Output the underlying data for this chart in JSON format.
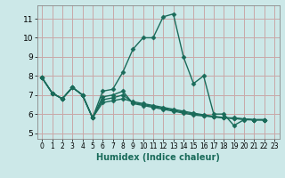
{
  "xlabel": "Humidex (Indice chaleur)",
  "bg_color": "#cce8e8",
  "grid_color": "#c8a8a8",
  "line_color": "#1a6b5a",
  "xlim": [
    -0.5,
    23.5
  ],
  "ylim": [
    4.7,
    11.7
  ],
  "xticks": [
    0,
    1,
    2,
    3,
    4,
    5,
    6,
    7,
    8,
    9,
    10,
    11,
    12,
    13,
    14,
    15,
    16,
    17,
    18,
    19,
    20,
    21,
    22,
    23
  ],
  "yticks": [
    5,
    6,
    7,
    8,
    9,
    10,
    11
  ],
  "series": [
    {
      "x": [
        0,
        1,
        2,
        3,
        4,
        5,
        6,
        7,
        8,
        9,
        10,
        11,
        12,
        13,
        14,
        15,
        16,
        17,
        18,
        19,
        20,
        21,
        22
      ],
      "y": [
        7.9,
        7.1,
        6.8,
        7.4,
        7.0,
        5.8,
        7.2,
        7.3,
        8.2,
        9.4,
        10.0,
        10.0,
        11.1,
        11.25,
        9.0,
        7.6,
        8.0,
        6.0,
        6.0,
        5.4,
        5.7,
        5.7,
        5.7
      ]
    },
    {
      "x": [
        0,
        1,
        2,
        3,
        4,
        5,
        6,
        7,
        8,
        9,
        10,
        11,
        12,
        13,
        14,
        15,
        16,
        17,
        18,
        19,
        20,
        21,
        22
      ],
      "y": [
        7.9,
        7.1,
        6.8,
        7.4,
        7.0,
        5.8,
        6.9,
        7.0,
        7.2,
        6.55,
        6.45,
        6.35,
        6.25,
        6.15,
        6.05,
        5.95,
        5.9,
        5.85,
        5.8,
        5.8,
        5.75,
        5.7,
        5.7
      ]
    },
    {
      "x": [
        0,
        1,
        2,
        3,
        4,
        5,
        6,
        7,
        8,
        9,
        10,
        11,
        12,
        13,
        14,
        15,
        16,
        17,
        18,
        19,
        20,
        21,
        22
      ],
      "y": [
        7.9,
        7.1,
        6.8,
        7.4,
        7.0,
        5.8,
        6.75,
        6.85,
        7.0,
        6.6,
        6.5,
        6.4,
        6.3,
        6.2,
        6.1,
        6.0,
        5.93,
        5.86,
        5.8,
        5.78,
        5.73,
        5.7,
        5.7
      ]
    },
    {
      "x": [
        0,
        1,
        2,
        3,
        4,
        5,
        6,
        7,
        8,
        9,
        10,
        11,
        12,
        13,
        14,
        15,
        16,
        17,
        18,
        19,
        20,
        21,
        22
      ],
      "y": [
        7.9,
        7.1,
        6.8,
        7.4,
        7.0,
        5.8,
        6.6,
        6.7,
        6.8,
        6.65,
        6.55,
        6.45,
        6.35,
        6.25,
        6.15,
        6.05,
        5.96,
        5.88,
        5.82,
        5.76,
        5.72,
        5.7,
        5.7
      ]
    }
  ],
  "marker": "D",
  "markersize": 2.5,
  "linewidth": 1.0
}
